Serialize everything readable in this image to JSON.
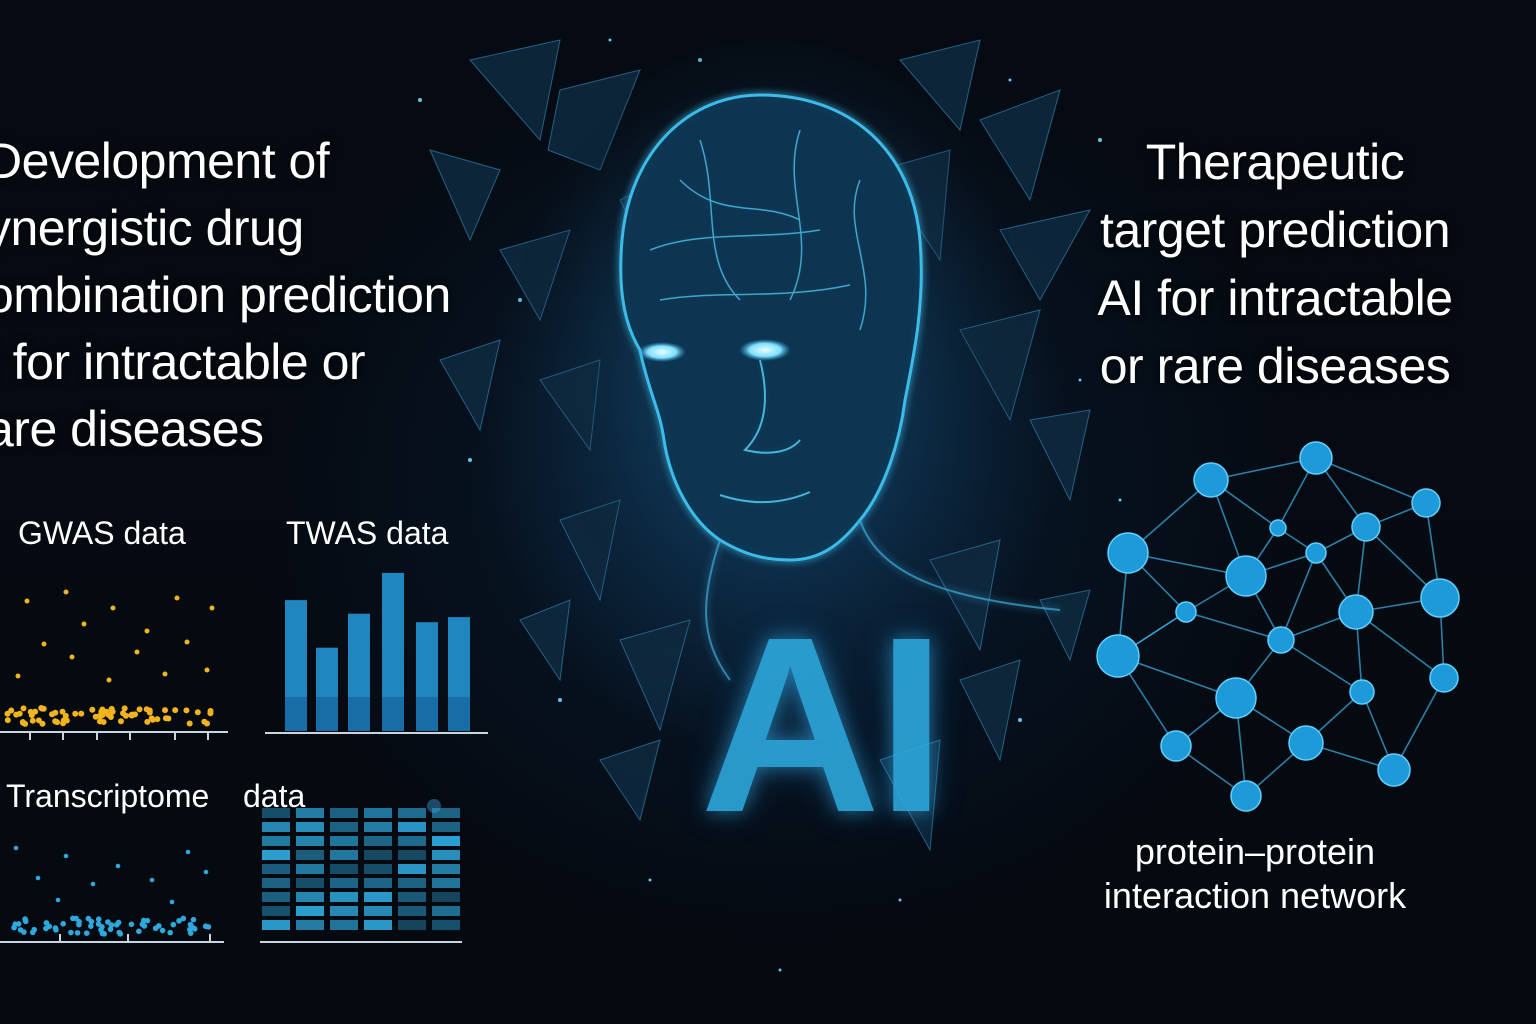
{
  "left_title": {
    "lines": [
      "Development of",
      "ynergistic drug",
      "ombination prediction",
      "I for intractable or",
      "are diseases"
    ]
  },
  "right_title": {
    "lines": [
      "Therapeutic",
      "target prediction",
      "AI for intractable",
      "or rare diseases"
    ]
  },
  "center_label": "AI",
  "panels": {
    "gwas": "GWAS data",
    "twas": "TWAS data",
    "transcriptome_a": "Transcriptome",
    "transcriptome_b": "data"
  },
  "network_label": {
    "line1": "protein–protein",
    "line2": "interaction network"
  },
  "colors": {
    "accent": "#2ea9de",
    "gwas_dots": "#f2b41c",
    "node": "#1f9ad8",
    "background": "#05090f"
  },
  "twas_bars": [
    0.77,
    0.49,
    0.69,
    0.93,
    0.64,
    0.67
  ],
  "heatmap_columns": 6,
  "heatmap_rows": 9
}
